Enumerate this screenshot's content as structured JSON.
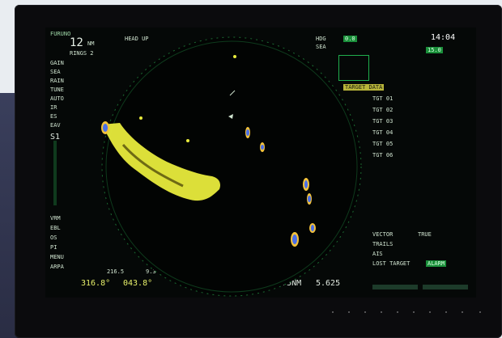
{
  "header": {
    "brand": "FURUNO",
    "range": "12",
    "range_unit": "NM",
    "rings": "RINGS 2",
    "mode": "HEAD UP",
    "hdg_lbl": "HDG",
    "spd_lbl": "SEA",
    "time": "14:04",
    "speed_a": "0.0",
    "speed_b": "15.0"
  },
  "left_panel": [
    "GAIN",
    "SEA",
    "RAIN",
    "TUNE",
    "AUTO",
    "IR",
    "ES",
    "EAV",
    "S1"
  ],
  "left_bottom": [
    "VRM",
    "EBL",
    "OS",
    "PI",
    "MENU",
    "ARPA"
  ],
  "readout": {
    "vrm": "316.8°",
    "ebl": "043.8°",
    "range_pair": "0.275NM",
    "range_pair_b": "5.625",
    "cursor_a": "216.5",
    "cursor_b": "9.3"
  },
  "right_panel": {
    "title": "TARGET DATA",
    "vector": "VECTOR",
    "vector_mode": "TRUE",
    "trails": "TRAILS",
    "ais": "AIS",
    "alarm_btn": "ALARM",
    "lost_target": "LOST TARGET",
    "target_list": [
      "TGT 01",
      "TGT 02",
      "TGT 03",
      "TGT 04",
      "TGT 05",
      "TGT 06"
    ]
  },
  "colors": {
    "land_echo": "#e8eb3c",
    "target_echo_core": "#4a6fe8",
    "target_echo_edge": "#f2c23c",
    "ring": "#2aa04e"
  },
  "icons": {
    "heading_marker": "north-arrow-icon",
    "cursor": "cross-cursor-icon"
  }
}
